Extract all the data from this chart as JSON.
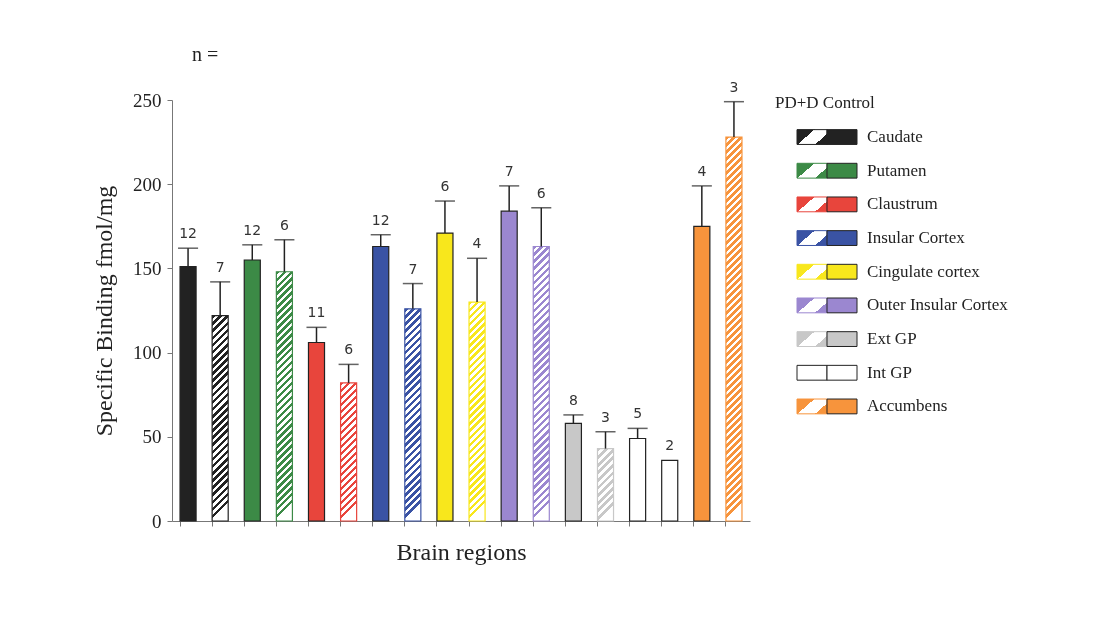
{
  "chart_data": {
    "type": "bar",
    "xlabel": "Brain regions",
    "ylabel": "Specific Binding fmol/mg",
    "legend_title": "PD+D  Control",
    "annotations": [
      "n =",
      "12",
      "7",
      "12",
      "6",
      "11",
      "6",
      "12",
      "7",
      "6",
      "4",
      "7",
      "6",
      "8",
      "3",
      "5",
      "2",
      "4",
      "3"
    ],
    "categories": [
      null,
      null,
      null,
      null,
      null,
      null,
      null,
      null,
      null,
      null,
      null,
      null,
      null,
      null,
      null,
      null,
      null,
      null
    ],
    "series": [
      {
        "name": "Caudate",
        "color": "#222222",
        "values": [
          151,
          122,
          null,
          null,
          null,
          null,
          null,
          null,
          null,
          null,
          null,
          null,
          null,
          null,
          null,
          null,
          null,
          null
        ],
        "errors": [
          [
            151,
            162
          ],
          [
            122,
            142
          ],
          null,
          null,
          null,
          null,
          null,
          null,
          null,
          null,
          null,
          null,
          null,
          null,
          null,
          null,
          null,
          null
        ]
      },
      {
        "name": "Putamen",
        "color": "#3c8a46",
        "values": [
          null,
          null,
          155,
          148,
          null,
          null,
          null,
          null,
          null,
          null,
          null,
          null,
          null,
          null,
          null,
          null,
          null,
          null
        ],
        "errors": [
          null,
          null,
          [
            155,
            164
          ],
          [
            148,
            167
          ],
          null,
          null,
          null,
          null,
          null,
          null,
          null,
          null,
          null,
          null,
          null,
          null,
          null,
          null
        ]
      },
      {
        "name": "Claustrum",
        "color": "#e8453c",
        "values": [
          null,
          null,
          null,
          null,
          106,
          82,
          null,
          null,
          null,
          null,
          null,
          null,
          null,
          null,
          null,
          null,
          null,
          null
        ],
        "errors": [
          null,
          null,
          null,
          null,
          [
            106,
            115
          ],
          [
            82,
            93
          ],
          null,
          null,
          null,
          null,
          null,
          null,
          null,
          null,
          null,
          null,
          null,
          null
        ]
      },
      {
        "name": "Insular Cortex",
        "color": "#3a53a4",
        "values": [
          null,
          null,
          null,
          null,
          null,
          null,
          163,
          126,
          null,
          null,
          null,
          null,
          null,
          null,
          null,
          null,
          null,
          null
        ],
        "errors": [
          null,
          null,
          null,
          null,
          null,
          null,
          [
            163,
            170
          ],
          [
            126,
            141
          ],
          null,
          null,
          null,
          null,
          null,
          null,
          null,
          null,
          null,
          null
        ]
      },
      {
        "name": "Cingulate cortex",
        "color": "#f8e71c",
        "values": [
          null,
          null,
          null,
          null,
          null,
          null,
          null,
          null,
          171,
          130,
          null,
          null,
          null,
          null,
          null,
          null,
          null,
          null
        ],
        "errors": [
          null,
          null,
          null,
          null,
          null,
          null,
          null,
          null,
          [
            171,
            190
          ],
          [
            130,
            156
          ],
          null,
          null,
          null,
          null,
          null,
          null,
          null,
          null
        ]
      },
      {
        "name": "Outer Insular Cortex",
        "color": "#9b87d0",
        "values": [
          null,
          null,
          null,
          null,
          null,
          null,
          null,
          null,
          null,
          null,
          184,
          163,
          null,
          null,
          null,
          null,
          null,
          null
        ],
        "errors": [
          null,
          null,
          null,
          null,
          null,
          null,
          null,
          null,
          null,
          null,
          [
            184,
            199
          ],
          [
            163,
            186
          ],
          null,
          null,
          null,
          null,
          null,
          null
        ]
      },
      {
        "name": "Ext GP",
        "color": "#c8c8c8",
        "values": [
          null,
          null,
          null,
          null,
          null,
          null,
          null,
          null,
          null,
          null,
          null,
          null,
          58,
          43,
          null,
          null,
          null,
          null
        ],
        "errors": [
          null,
          null,
          null,
          null,
          null,
          null,
          null,
          null,
          null,
          null,
          null,
          null,
          [
            58,
            63
          ],
          [
            43,
            53
          ],
          null,
          null,
          null,
          null
        ]
      },
      {
        "name": "Int GP",
        "color": "#ffffff",
        "values": [
          null,
          null,
          null,
          null,
          null,
          null,
          null,
          null,
          null,
          null,
          null,
          null,
          null,
          null,
          49,
          36,
          null,
          null
        ],
        "errors": [
          null,
          null,
          null,
          null,
          null,
          null,
          null,
          null,
          null,
          null,
          null,
          null,
          null,
          null,
          [
            49,
            55
          ],
          null,
          null,
          null
        ]
      },
      {
        "name": "Accumbens",
        "color": "#f7943c",
        "values": [
          null,
          null,
          null,
          null,
          null,
          null,
          null,
          null,
          null,
          null,
          null,
          null,
          null,
          null,
          null,
          null,
          175,
          228
        ],
        "errors": [
          null,
          null,
          null,
          null,
          null,
          null,
          null,
          null,
          null,
          null,
          null,
          null,
          null,
          null,
          null,
          null,
          [
            175,
            199
          ],
          [
            228,
            249
          ]
        ]
      }
    ],
    "ylim": [
      0,
      250
    ],
    "yticks": [
      0,
      50,
      100,
      150,
      200,
      250
    ],
    "tick_labels": "y",
    "grid": false,
    "legend": "right"
  }
}
